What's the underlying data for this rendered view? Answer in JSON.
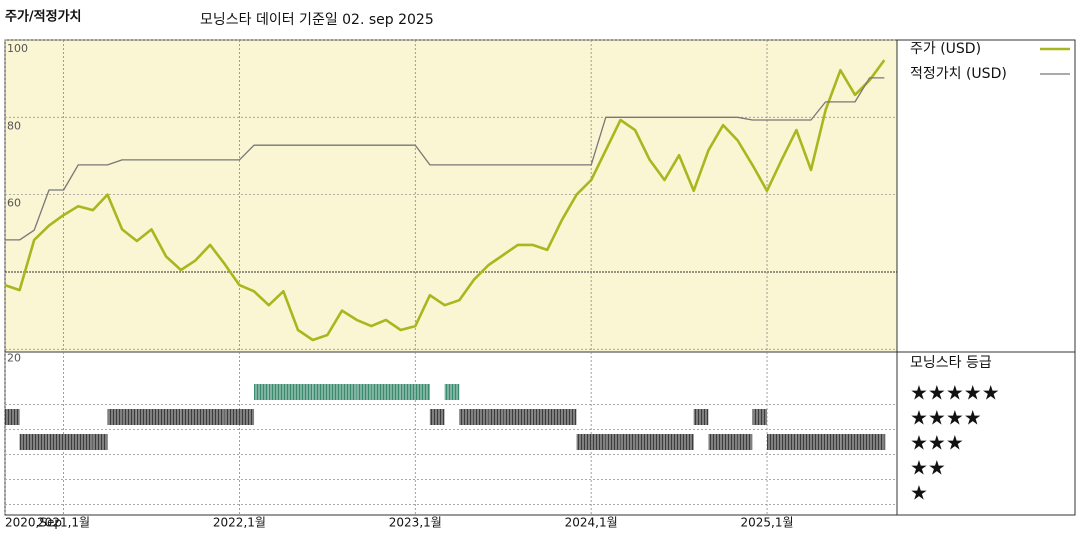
{
  "chart_data": {
    "type": "line",
    "title": "주가/적정가치",
    "subtitle": "모닝스타 데이터 기준일 02. sep 2025",
    "x": [
      2020.667,
      2020.75,
      2020.833,
      2020.917,
      2021,
      2021.083,
      2021.167,
      2021.25,
      2021.333,
      2021.417,
      2021.5,
      2021.583,
      2021.667,
      2021.75,
      2021.833,
      2021.917,
      2022,
      2022.083,
      2022.167,
      2022.25,
      2022.333,
      2022.417,
      2022.5,
      2022.583,
      2022.667,
      2022.75,
      2022.833,
      2022.917,
      2023,
      2023.083,
      2023.167,
      2023.25,
      2023.333,
      2023.417,
      2023.5,
      2023.583,
      2023.667,
      2023.75,
      2023.833,
      2023.917,
      2024,
      2024.083,
      2024.167,
      2024.25,
      2024.333,
      2024.417,
      2024.5,
      2024.583,
      2024.667,
      2024.75,
      2024.833,
      2024.917,
      2025,
      2025.083,
      2025.167,
      2025.25,
      2025.333,
      2025.417,
      2025.5,
      2025.583,
      2025.667
    ],
    "series": [
      {
        "name": "주가 (USD)",
        "color": "#a9b71f",
        "values": [
          36.6,
          35.3,
          48.3,
          52,
          54.7,
          57,
          56,
          60,
          51,
          48,
          51,
          44,
          40.5,
          43,
          47,
          42,
          36.6,
          35,
          31.4,
          35,
          25,
          22.4,
          23.7,
          30,
          27.6,
          26,
          27.6,
          25,
          26,
          34,
          31.4,
          32.7,
          38,
          41.8,
          44.4,
          47,
          47,
          45.7,
          53.4,
          60,
          63.8,
          71.5,
          79.3,
          76.7,
          69,
          63.8,
          70.2,
          61,
          71.5,
          78,
          74,
          67.7,
          61,
          69,
          76.7,
          66.4,
          81.9,
          92.2,
          85.8,
          89.6,
          94.8
        ]
      },
      {
        "name": "적정가치 (USD)",
        "color": "#777777",
        "values": [
          48.3,
          48.3,
          50.8,
          61.2,
          61.2,
          67.7,
          67.7,
          67.7,
          69,
          69,
          69,
          69,
          69,
          69,
          69,
          69,
          69,
          72.8,
          72.8,
          72.8,
          72.8,
          72.8,
          72.8,
          72.8,
          72.8,
          72.8,
          72.8,
          72.8,
          72.8,
          67.7,
          67.7,
          67.7,
          67.7,
          67.7,
          67.7,
          67.7,
          67.7,
          67.7,
          67.7,
          67.7,
          67.7,
          80,
          80,
          80,
          80,
          80,
          80,
          80,
          80,
          80,
          80,
          79.3,
          79.3,
          79.3,
          79.3,
          79.3,
          84,
          84,
          84,
          90.2,
          90.2
        ]
      }
    ],
    "xlim": [
      2020.667,
      2025.739
    ],
    "xticks": [
      {
        "value": 2020.667,
        "label": "2020,Sep"
      },
      {
        "value": 2021,
        "label": "2021,1월"
      },
      {
        "value": 2022,
        "label": "2022,1월"
      },
      {
        "value": 2023,
        "label": "2023,1월"
      },
      {
        "value": 2024,
        "label": "2024,1월"
      },
      {
        "value": 2025,
        "label": "2025,1월"
      }
    ],
    "ylim": [
      19.3,
      100
    ],
    "yticks": [
      20,
      60,
      80,
      100
    ],
    "reference_line": 40,
    "grid": true,
    "rating_title": "모닝스타 등급",
    "rating_labels": [
      "★",
      "★★",
      "★★★",
      "★★★★",
      "★★★★★"
    ],
    "ratings": [
      4,
      3,
      3,
      3,
      3,
      3,
      3,
      4,
      4,
      4,
      4,
      4,
      4,
      4,
      4,
      4,
      4,
      5,
      5,
      5,
      5,
      5,
      5,
      5,
      5,
      5,
      5,
      5,
      5,
      4,
      5,
      4,
      4,
      4,
      4,
      4,
      4,
      4,
      4,
      3,
      3,
      3,
      3,
      3,
      3,
      3,
      3,
      4,
      3,
      3,
      3,
      4,
      3,
      3,
      3,
      3,
      3,
      3,
      3,
      3,
      3
    ],
    "rating_colors": {
      "5": "#3a8a6e",
      "other": "#3c3c3c"
    }
  }
}
